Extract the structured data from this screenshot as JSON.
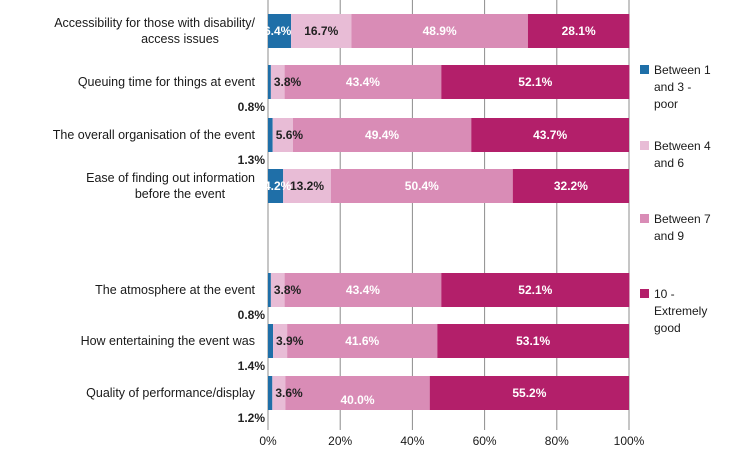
{
  "chart_data": {
    "type": "bar",
    "orientation": "horizontal",
    "stacked": "100%",
    "categories": [
      [
        "Accessibility for those with disability/",
        "access issues"
      ],
      [
        "Queuing time for things at event"
      ],
      [
        "The overall organisation of the event"
      ],
      [
        "Ease of finding out information",
        "before the event"
      ],
      [
        "The atmosphere at the event"
      ],
      [
        "How entertaining the event was"
      ],
      [
        "Quality of performance/display"
      ]
    ],
    "series": [
      {
        "name": [
          "Between 1",
          "and 3 -",
          "poor"
        ],
        "color": "#1f6fa8",
        "values": [
          6.4,
          0.8,
          1.3,
          4.2,
          0.8,
          1.4,
          1.2
        ],
        "labels": [
          "6.4%",
          "0.8%",
          "1.3%",
          "4.2%",
          "0.8%",
          "1.4%",
          "1.2%"
        ]
      },
      {
        "name": [
          "Between 4",
          "and 6"
        ],
        "color": "#e8bcd6",
        "values": [
          16.7,
          3.8,
          5.6,
          13.2,
          3.8,
          3.9,
          3.6
        ],
        "labels": [
          "16.7%",
          "3.8%",
          "5.6%",
          "13.2%",
          "3.8%",
          "3.9%",
          "3.6%"
        ]
      },
      {
        "name": [
          "Between 7",
          "and 9"
        ],
        "color": "#d98cb6",
        "values": [
          48.9,
          43.4,
          49.4,
          50.4,
          43.4,
          41.6,
          40.0
        ],
        "labels": [
          "48.9%",
          "43.4%",
          "49.4%",
          "50.4%",
          "43.4%",
          "41.6%",
          "40.0%"
        ]
      },
      {
        "name": [
          "10 -",
          "Extremely",
          "good"
        ],
        "color": "#b31f6a",
        "values": [
          28.1,
          52.1,
          43.7,
          32.2,
          52.1,
          53.1,
          55.2
        ],
        "labels": [
          "28.1%",
          "52.1%",
          "43.7%",
          "32.2%",
          "52.1%",
          "53.1%",
          "55.2%"
        ]
      }
    ],
    "xlim": [
      0,
      100
    ],
    "xticks": [
      "0%",
      "20%",
      "40%",
      "60%",
      "80%",
      "100%"
    ],
    "grid": "vertical",
    "legend": "right"
  }
}
